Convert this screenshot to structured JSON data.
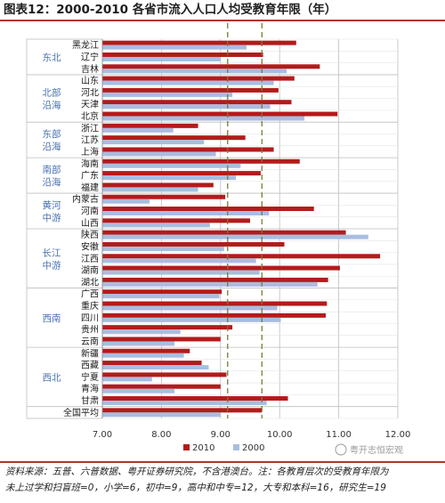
{
  "title": "图表12：2000-2010 各省市流入人口人均受教育年限（年）",
  "source_lines": [
    "资料来源：五普、六普数据、粤开证券研究院，不含港澳台。注：各教育层次的受教育年限为",
    "未上过学和扫盲班=0，小学=6，初中=9，高中和中专=12，大专和本科=16，研究生=19"
  ],
  "watermark": "粤开志恒宏观",
  "colors": {
    "s2010": "#b31b1b",
    "s2000": "#a9bddf",
    "group_text": "#4a72b0",
    "grid": "#bfbfbf",
    "refline": "#7a7a3a"
  },
  "chart_data": {
    "type": "bar",
    "orientation": "horizontal",
    "categories": [
      "黑龙江",
      "辽宁",
      "吉林",
      "山东",
      "河北",
      "天津",
      "北京",
      "浙江",
      "江苏",
      "上海",
      "海南",
      "广东",
      "福建",
      "内蒙古",
      "河南",
      "山西",
      "陕西",
      "安徽",
      "江西",
      "湖南",
      "湖北",
      "广西",
      "重庆",
      "四川",
      "贵州",
      "云南",
      "新疆",
      "西藏",
      "宁夏",
      "青海",
      "甘肃",
      "全国平均"
    ],
    "groups": [
      {
        "label": [
          "东北"
        ],
        "start": 0,
        "end": 2
      },
      {
        "label": [
          "北部",
          "沿海"
        ],
        "start": 3,
        "end": 6
      },
      {
        "label": [
          "东部",
          "沿海"
        ],
        "start": 7,
        "end": 9
      },
      {
        "label": [
          "南部",
          "沿海"
        ],
        "start": 10,
        "end": 12
      },
      {
        "label": [
          "黄河",
          "中游"
        ],
        "start": 13,
        "end": 15
      },
      {
        "label": [
          "长江",
          "中游"
        ],
        "start": 16,
        "end": 20
      },
      {
        "label": [
          "西南"
        ],
        "start": 21,
        "end": 25
      },
      {
        "label": [
          "西北"
        ],
        "start": 26,
        "end": 30
      }
    ],
    "series": [
      {
        "name": "2010",
        "values": [
          10.28,
          9.72,
          10.68,
          10.25,
          9.98,
          10.2,
          10.98,
          8.62,
          9.42,
          9.9,
          10.34,
          9.68,
          8.88,
          9.08,
          10.58,
          9.5,
          11.12,
          10.08,
          11.7,
          11.02,
          10.82,
          9.02,
          10.8,
          10.78,
          9.2,
          9.0,
          8.48,
          8.68,
          9.1,
          9.0,
          10.14,
          9.7
        ]
      },
      {
        "name": "2000",
        "values": [
          9.44,
          9.0,
          10.12,
          9.9,
          9.2,
          9.84,
          10.42,
          8.2,
          8.72,
          8.92,
          9.34,
          9.26,
          8.62,
          7.8,
          9.82,
          8.82,
          11.5,
          9.06,
          9.6,
          9.66,
          10.64,
          8.98,
          9.96,
          10.02,
          8.32,
          8.22,
          8.38,
          8.8,
          7.84,
          8.22,
          9.78,
          9.0
        ]
      }
    ],
    "reference_lines": [
      9.12,
      9.7
    ],
    "xlim": [
      7.0,
      12.0
    ],
    "xticks": [
      "7.00",
      "8.00",
      "9.00",
      "10.00",
      "11.00",
      "12.00"
    ],
    "xtick_values": [
      7,
      8,
      9,
      10,
      11,
      12
    ],
    "legend": {
      "placement": "bottom-center"
    },
    "grid": true
  }
}
